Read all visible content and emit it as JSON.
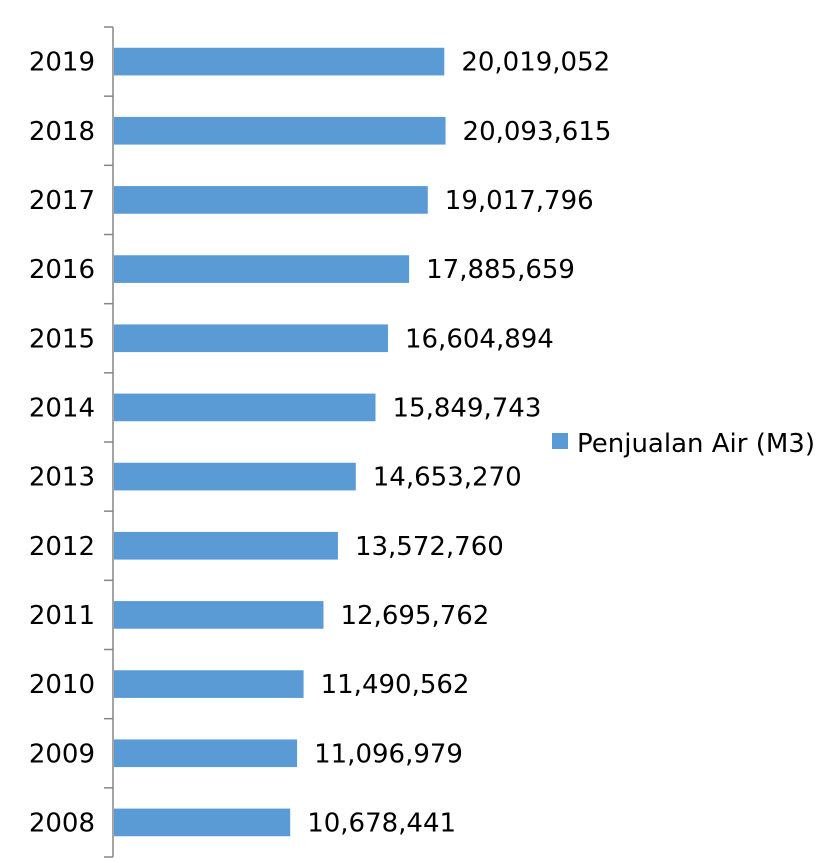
{
  "chart_data": {
    "type": "bar",
    "orientation": "horizontal",
    "categories": [
      "2019",
      "2018",
      "2017",
      "2016",
      "2015",
      "2014",
      "2013",
      "2012",
      "2011",
      "2010",
      "2009",
      "2008"
    ],
    "series": [
      {
        "name": "Penjualan Air (M3)",
        "values": [
          20019052,
          20093615,
          19017796,
          17885659,
          16604894,
          15849743,
          14653270,
          13572760,
          12695762,
          11490562,
          11096979,
          10678441
        ],
        "labels": [
          "20,019,052",
          "20,093,615",
          "19,017,796",
          "17,885,659",
          "16,604,894",
          "15,849,743",
          "14,653,270",
          "13,572,760",
          "12,695,762",
          "11,490,562",
          "11,096,979",
          "10,678,441"
        ]
      }
    ],
    "xlim": [
      0,
      50000000
    ],
    "grid": false,
    "legend_position": "right",
    "colors": {
      "bar": "#5B9BD5",
      "axis": "#868686",
      "text": "#000000"
    }
  }
}
